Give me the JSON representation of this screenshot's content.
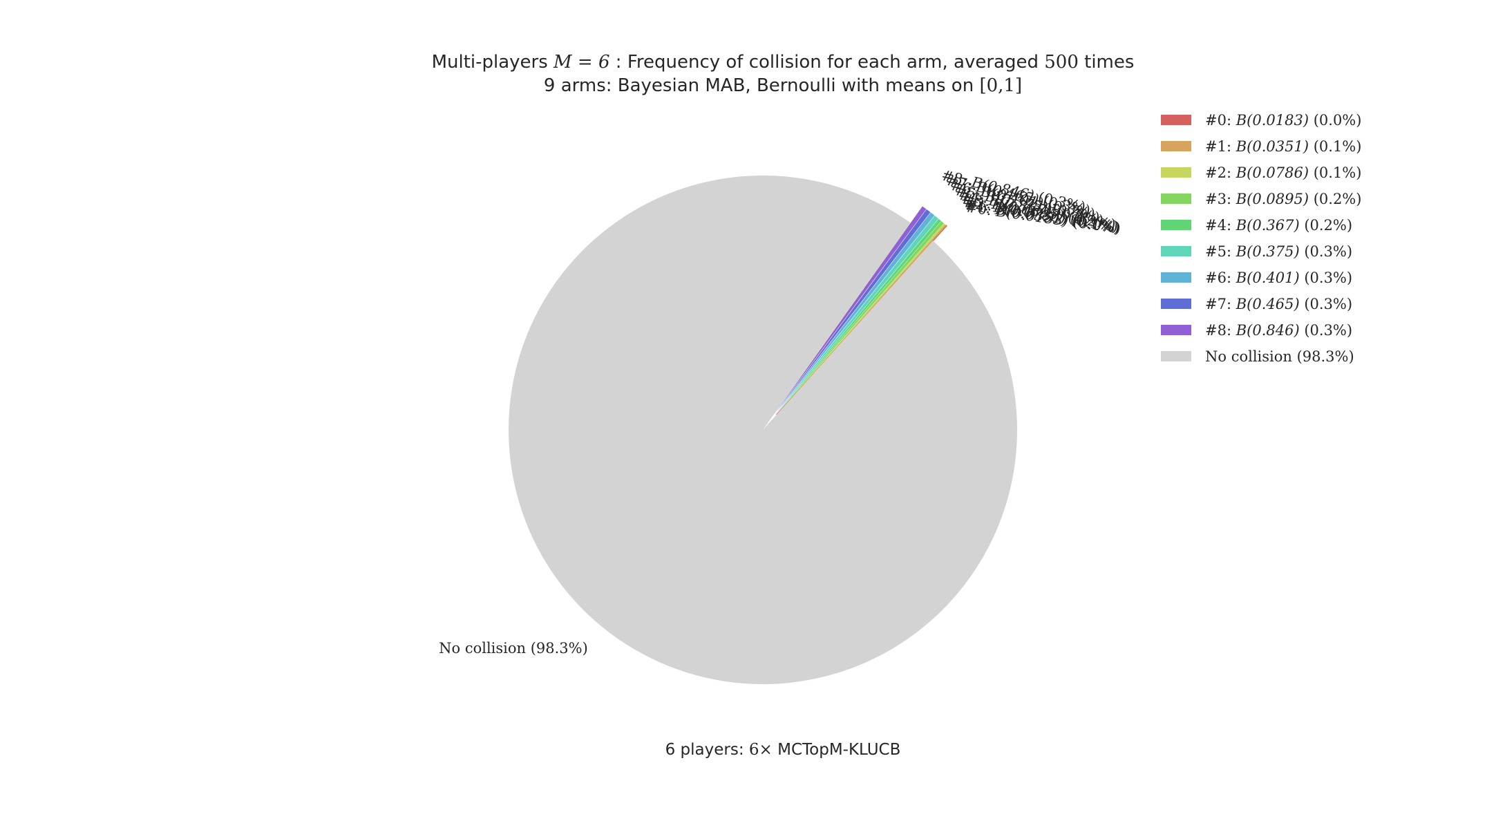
{
  "chart_data": {
    "type": "pie",
    "title_line1": "Multi-players $M=6$ : Frequency of collision for each arm, averaged $500$ times",
    "title_line2": "9 arms: Bayesian MAB, Bernoulli with means on $[0,1]$",
    "xlabel": "6 players: $6\\times$ MCTopM-KLUCB",
    "slices": [
      {
        "label": "#0: $B(0.0183)$ $(0.0\\%)$",
        "value": 0.0,
        "color": "#d65f5f"
      },
      {
        "label": "#1: $B(0.0351)$ $(0.1\\%)$",
        "value": 0.1,
        "color": "#d6a45f"
      },
      {
        "label": "#2: $B(0.0786)$ $(0.1\\%)$",
        "value": 0.1,
        "color": "#c7d65f"
      },
      {
        "label": "#3: $B(0.0895)$ $(0.2\\%)$",
        "value": 0.2,
        "color": "#82d65f"
      },
      {
        "label": "#4: $B(0.367)$ $(0.2\\%)$",
        "value": 0.2,
        "color": "#5fd673"
      },
      {
        "label": "#5: $B(0.375)$ $(0.3\\%)$",
        "value": 0.3,
        "color": "#5fd6b8"
      },
      {
        "label": "#6: $B(0.401)$ $(0.3\\%)$",
        "value": 0.3,
        "color": "#5fb3d6"
      },
      {
        "label": "#7: $B(0.465)$ $(0.3\\%)$",
        "value": 0.3,
        "color": "#5f6ed6"
      },
      {
        "label": "#8: $B(0.846)$ $(0.3\\%)$",
        "value": 0.3,
        "color": "#915fd6"
      },
      {
        "label": "No collision $(98.3\\%)$",
        "value": 98.3,
        "color": "#d3d3d3"
      }
    ],
    "legend_position": "upper-right",
    "explode_small_slices": true
  }
}
